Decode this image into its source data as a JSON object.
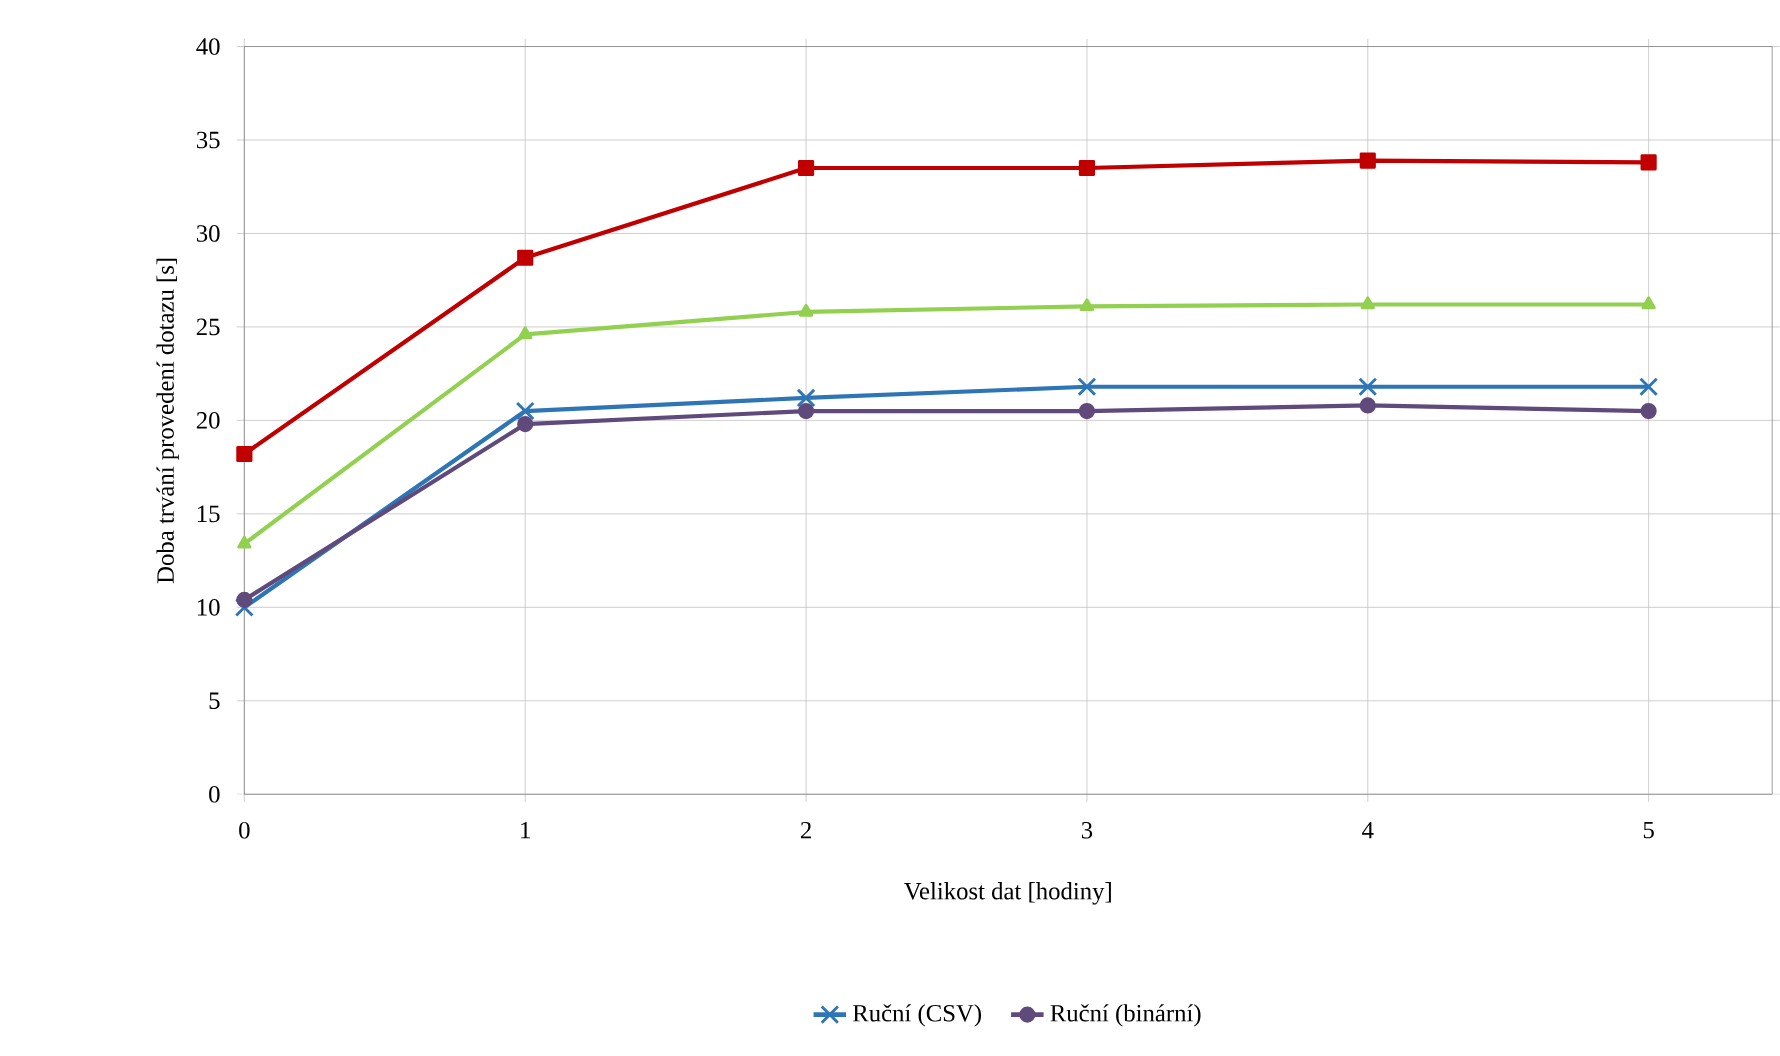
{
  "chart_data": {
    "type": "line",
    "xlabel": "Velikost dat [hodiny]",
    "ylabel": "Doba trvání provedení dotazu [s]",
    "x": [
      0,
      1,
      2,
      3,
      4,
      5
    ],
    "xlim": [
      0,
      5.44
    ],
    "xticks": [
      0,
      1,
      2,
      3,
      4,
      5
    ],
    "ylim": [
      0,
      40
    ],
    "yticks": [
      0,
      5,
      10,
      15,
      20,
      25,
      30,
      35,
      40
    ],
    "grid": true,
    "legend": "bottom",
    "line_style": "solid",
    "series": [
      {
        "name": "Ruční (CSV)",
        "color": "#2e75b6",
        "marker": "cross",
        "values": [
          10.0,
          20.5,
          21.2,
          21.8,
          21.8,
          21.8
        ]
      },
      {
        "color": "#92d050",
        "marker": "triangle",
        "values": [
          13.4,
          24.6,
          25.8,
          26.1,
          26.2,
          26.2
        ]
      },
      {
        "color": "#c00000",
        "marker": "square",
        "values": [
          18.2,
          28.7,
          33.5,
          33.5,
          33.9,
          33.8
        ]
      },
      {
        "name": "Ruční (binární)",
        "color": "#604a7b",
        "marker": "circle",
        "values": [
          10.4,
          19.8,
          20.5,
          20.5,
          20.8,
          20.5
        ]
      }
    ]
  }
}
